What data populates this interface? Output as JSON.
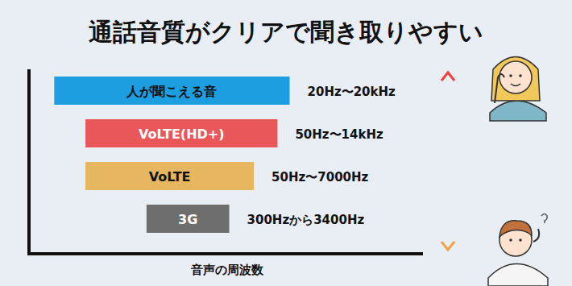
{
  "chart_data": {
    "type": "bar",
    "orientation": "horizontal",
    "title": "通話音質がクリアで聞き取りやすい",
    "x_label": "音声の周波数",
    "categories": [
      "人が聞こえる音",
      "VoLTE(HD+)",
      "VoLTE",
      "3G"
    ],
    "low": [
      20,
      50,
      50,
      300
    ],
    "values": [
      20000,
      14000,
      7000,
      3400
    ],
    "value_labels": [
      "20Hz〜20kHz",
      "50Hz〜14kHz",
      "50Hz〜7000Hz",
      "300Hzから3400Hz"
    ],
    "colors": [
      "#1d9ee0",
      "#e9575a",
      "#e6b660",
      "#6e6e6e"
    ],
    "xlim": [
      10,
      1000000
    ],
    "log": "x",
    "tick_labels": false,
    "data_labels": true
  }
}
